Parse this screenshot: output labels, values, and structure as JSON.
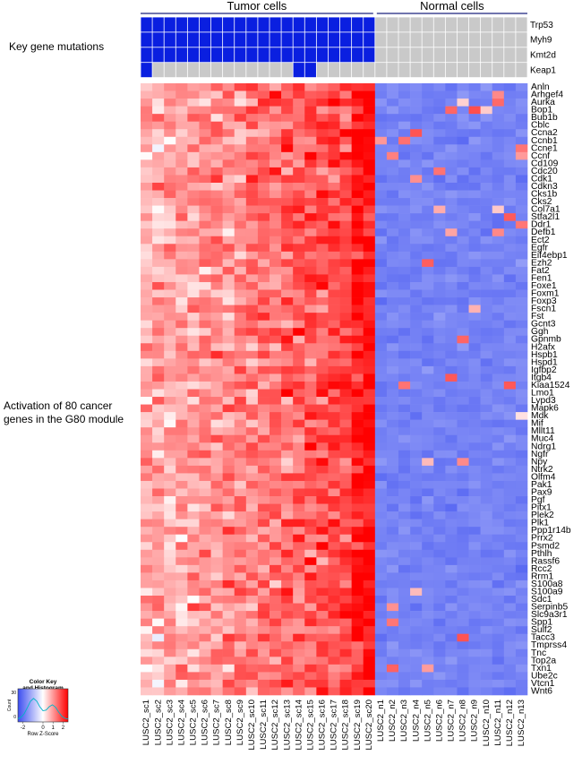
{
  "labels": {
    "tumor_group": "Tumor cells",
    "normal_group": "Normal cells",
    "mutation_block": "Key gene mutations",
    "module_block": "Activation of 80 cancer\ngenes in the G80 module"
  },
  "color_key": {
    "title": "Color Key\nand Histogram",
    "ylabel": "Count",
    "yticks": [
      "0",
      "30"
    ],
    "xlabel": "Row Z-Score",
    "xticks": [
      "-2",
      "0",
      "1",
      "2"
    ]
  },
  "colors": {
    "mutated": "#0a1fe0",
    "wildtype": "#c9c9c9",
    "low": "#3b4df0",
    "mid": "#ffffff",
    "high": "#ff0000",
    "group_line": "#1a237e"
  },
  "chart_data": {
    "type": "heatmap",
    "title": "",
    "samples": [
      "LUSC2_sc1",
      "LUSC2_sc2",
      "LUSC2_sc3",
      "LUSC2_sc4",
      "LUSC2_sc5",
      "LUSC2_sc6",
      "LUSC2_sc7",
      "LUSC2_sc8",
      "LUSC2_sc9",
      "LUSC2_sc10",
      "LUSC2_sc11",
      "LUSC2_sc12",
      "LUSC2_sc13",
      "LUSC2_sc14",
      "LUSC2_sc15",
      "LUSC2_sc16",
      "LUSC2_sc17",
      "LUSC2_sc18",
      "LUSC2_sc19",
      "LUSC2_sc20",
      "LUSC2_n1",
      "LUSC2_n2",
      "LUSC2_n3",
      "LUSC2_n4",
      "LUSC2_n5",
      "LUSC2_n6",
      "LUSC2_n7",
      "LUSC2_n8",
      "LUSC2_n9",
      "LUSC2_n10",
      "LUSC2_n11",
      "LUSC2_n12",
      "LUSC2_n13"
    ],
    "groups": [
      {
        "name": "Tumor cells",
        "n": 20
      },
      {
        "name": "Normal cells",
        "n": 13
      }
    ],
    "mutation_genes": [
      "Trp53",
      "Myh9",
      "Kmt2d",
      "Keap1"
    ],
    "mutations": [
      [
        1,
        1,
        1,
        1,
        1,
        1,
        1,
        1,
        1,
        1,
        1,
        1,
        1,
        1,
        1,
        1,
        1,
        1,
        1,
        1,
        0,
        0,
        0,
        0,
        0,
        0,
        0,
        0,
        0,
        0,
        0,
        0,
        0
      ],
      [
        1,
        1,
        1,
        1,
        1,
        1,
        1,
        1,
        1,
        1,
        1,
        1,
        1,
        1,
        1,
        1,
        1,
        1,
        1,
        1,
        0,
        0,
        0,
        0,
        0,
        0,
        0,
        0,
        0,
        0,
        0,
        0,
        0
      ],
      [
        1,
        1,
        1,
        1,
        1,
        1,
        1,
        1,
        1,
        1,
        1,
        1,
        1,
        1,
        1,
        1,
        1,
        1,
        1,
        1,
        0,
        0,
        0,
        0,
        0,
        0,
        0,
        0,
        0,
        0,
        0,
        0,
        0
      ],
      [
        1,
        0,
        0,
        0,
        0,
        0,
        0,
        0,
        0,
        0,
        0,
        0,
        0,
        1,
        1,
        0,
        0,
        0,
        0,
        0,
        0,
        0,
        0,
        0,
        0,
        0,
        0,
        0,
        0,
        0,
        0,
        0,
        0
      ]
    ],
    "genes": [
      "Anln",
      "Arhgef4",
      "Aurka",
      "Bop1",
      "Bub1b",
      "Cblc",
      "Ccna2",
      "Ccnb1",
      "Ccne1",
      "Ccnf",
      "Cd109",
      "Cdc20",
      "Cdk1",
      "Cdkn3",
      "Cks1b",
      "Cks2",
      "Col7a1",
      "Stfa2l1",
      "Ddr1",
      "Defb1",
      "Ect2",
      "Egfr",
      "Eif4ebp1",
      "Ezh2",
      "Fat2",
      "Fen1",
      "Foxe1",
      "Foxm1",
      "Foxp3",
      "Fscn1",
      "Fst",
      "Gcnt3",
      "Ggh",
      "Gpnmb",
      "H2afx",
      "Hspb1",
      "Hspd1",
      "Igfbp2",
      "Itgb4",
      "Kiaa1524",
      "Lmo1",
      "Lypd3",
      "Mapk6",
      "Mdk",
      "Mif",
      "Mllt11",
      "Muc4",
      "Ndrg1",
      "Ngfr",
      "Npy",
      "Ntrk2",
      "Olfm4",
      "Pak1",
      "Pax9",
      "Pgf",
      "Pitx1",
      "Plek2",
      "Plk1",
      "Ppp1r14b",
      "Prrx2",
      "Psmd2",
      "Pthlh",
      "Rassf6",
      "Rcc2",
      "Rrm1",
      "S100a8",
      "S100a9",
      "Sdc1",
      "Serpinb5",
      "Slc9a3r1",
      "Spp1",
      "Sulf2",
      "Tacc3",
      "Tmprss4",
      "Tnc",
      "Top2a",
      "Txn1",
      "Ube2c",
      "Vtcn1",
      "Wnt6"
    ],
    "zscore_range": [
      -2,
      2
    ],
    "tumor_mean_z": 0.9,
    "normal_mean_z": -1.4
  }
}
